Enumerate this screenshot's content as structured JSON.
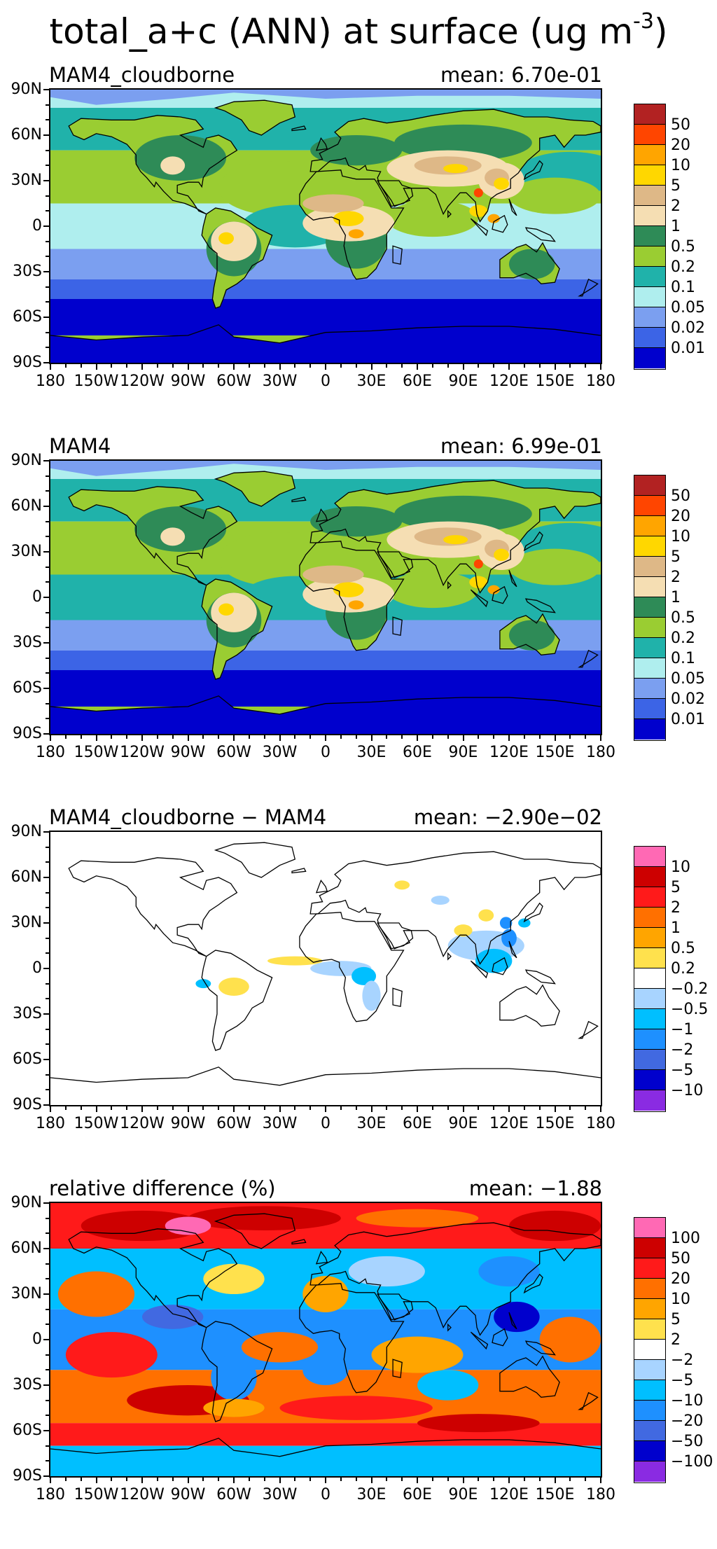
{
  "figure": {
    "title": "total_a+c (ANN) at surface (ug m",
    "title_sup": "-3",
    "title_end": ")"
  },
  "lat_labels": [
    "90N",
    "60N",
    "30N",
    "0",
    "30S",
    "60S",
    "90S"
  ],
  "lon_labels": [
    "180",
    "150W",
    "120W",
    "90W",
    "60W",
    "30W",
    "0",
    "30E",
    "60E",
    "90E",
    "120E",
    "150E",
    "180"
  ],
  "panels": [
    {
      "title": "MAM4_cloudborne",
      "mean": "mean: 6.70e-01",
      "type": "abs",
      "levels": [
        "50",
        "20",
        "10",
        "5",
        "2",
        "1",
        "0.5",
        "0.2",
        "0.1",
        "0.05",
        "0.02",
        "0.01"
      ],
      "colors": [
        "#b22222",
        "#ff4500",
        "#ffa500",
        "#ffd700",
        "#deb887",
        "#f5deb3",
        "#2e8b57",
        "#9acd32",
        "#20b2aa",
        "#afeeee",
        "#7b9ff0",
        "#3c64e6",
        "#0000cd"
      ]
    },
    {
      "title": "MAM4",
      "mean": "mean: 6.99e-01",
      "type": "abs",
      "levels": [
        "50",
        "20",
        "10",
        "5",
        "2",
        "1",
        "0.5",
        "0.2",
        "0.1",
        "0.05",
        "0.02",
        "0.01"
      ],
      "colors": [
        "#b22222",
        "#ff4500",
        "#ffa500",
        "#ffd700",
        "#deb887",
        "#f5deb3",
        "#2e8b57",
        "#9acd32",
        "#20b2aa",
        "#afeeee",
        "#7b9ff0",
        "#3c64e6",
        "#0000cd"
      ]
    },
    {
      "title": "MAM4_cloudborne − MAM4",
      "mean": "mean: −2.90e−02",
      "type": "diff",
      "levels": [
        "10",
        "5",
        "2",
        "1",
        "0.5",
        "0.2",
        "−0.2",
        "−0.5",
        "−1",
        "−2",
        "−5",
        "−10"
      ],
      "colors": [
        "#ff69b4",
        "#cd0000",
        "#ff1a1a",
        "#ff7000",
        "#ffa500",
        "#ffe14d",
        "#ffffff",
        "#a8d4ff",
        "#00bfff",
        "#1e90ff",
        "#4169e1",
        "#0000cd",
        "#8a2be2"
      ]
    },
    {
      "title": "relative difference (%)",
      "mean": "mean: −1.88",
      "type": "rel",
      "levels": [
        "100",
        "50",
        "20",
        "10",
        "5",
        "2",
        "−2",
        "−5",
        "−10",
        "−20",
        "−50",
        "−100"
      ],
      "colors": [
        "#ff69b4",
        "#cd0000",
        "#ff1a1a",
        "#ff7000",
        "#ffa500",
        "#ffe14d",
        "#ffffff",
        "#a8d4ff",
        "#00bfff",
        "#1e90ff",
        "#4169e1",
        "#0000cd",
        "#8a2be2"
      ]
    }
  ]
}
